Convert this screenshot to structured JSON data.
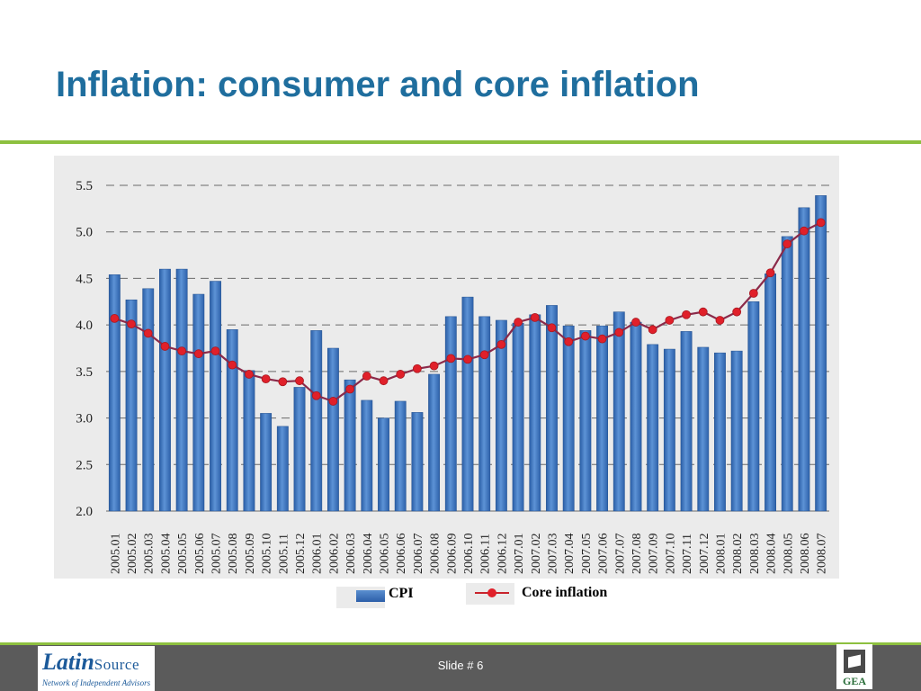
{
  "slide": {
    "title": "Inflation: consumer and core inflation",
    "slide_number": "Slide # 6"
  },
  "footer": {
    "logo_main": "Latin",
    "logo_main_sc": "Source",
    "logo_sub": "Network of Independent Advisors",
    "gea_text": "GEA"
  },
  "legend": {
    "cpi_label": "CPI",
    "core_label": "Core inflation"
  },
  "colors": {
    "bar": "#3b74c2",
    "line": "#8b2a4a",
    "marker": "#e0202a",
    "accent_rule": "#8dc03f",
    "title": "#1f6e9e"
  },
  "chart_data": {
    "type": "bar",
    "title": "",
    "xlabel": "",
    "ylabel": "",
    "ylim": [
      2.0,
      5.5
    ],
    "yticks": [
      "5.5",
      "5.0",
      "4.5",
      "4.0",
      "3.5",
      "3.0",
      "2.5",
      "2.0"
    ],
    "grid": true,
    "legend_position": "bottom",
    "categories": [
      "2005.01",
      "2005.02",
      "2005.03",
      "2005.04",
      "2005.05",
      "2005.06",
      "2005.07",
      "2005.08",
      "2005.09",
      "2005.10",
      "2005.11",
      "2005.12",
      "2006.01",
      "2006.02",
      "2006.03",
      "2006.04",
      "2006.05",
      "2006.06",
      "2006.07",
      "2006.08",
      "2006.09",
      "2006.10",
      "2006.11",
      "2006.12",
      "2007.01",
      "2007.02",
      "2007.03",
      "2007.04",
      "2007.05",
      "2007.06",
      "2007.07",
      "2007.08",
      "2007.09",
      "2007.10",
      "2007.11",
      "2007.12",
      "2008.01",
      "2008.02",
      "2008.03",
      "2008.04",
      "2008.05",
      "2008.06",
      "2008.07"
    ],
    "series": [
      {
        "name": "CPI",
        "type": "bar",
        "values": [
          4.54,
          4.27,
          4.39,
          4.6,
          4.6,
          4.33,
          4.47,
          3.95,
          3.51,
          3.05,
          2.91,
          3.33,
          3.94,
          3.75,
          3.41,
          3.19,
          3.0,
          3.18,
          3.06,
          3.47,
          4.09,
          4.3,
          4.09,
          4.05,
          4.02,
          4.11,
          4.21,
          3.99,
          3.94,
          3.99,
          4.14,
          4.03,
          3.79,
          3.74,
          3.93,
          3.76,
          3.7,
          3.72,
          4.25,
          4.55,
          4.95,
          5.26,
          5.39
        ]
      },
      {
        "name": "Core inflation",
        "type": "line",
        "values": [
          4.07,
          4.01,
          3.91,
          3.77,
          3.72,
          3.69,
          3.72,
          3.57,
          3.47,
          3.42,
          3.39,
          3.4,
          3.24,
          3.18,
          3.31,
          3.45,
          3.4,
          3.47,
          3.53,
          3.56,
          3.64,
          3.63,
          3.68,
          3.79,
          4.03,
          4.08,
          3.97,
          3.82,
          3.88,
          3.85,
          3.92,
          4.03,
          3.95,
          4.05,
          4.11,
          4.14,
          4.05,
          4.14,
          4.34,
          4.56,
          4.87,
          5.01,
          5.1
        ]
      }
    ]
  }
}
